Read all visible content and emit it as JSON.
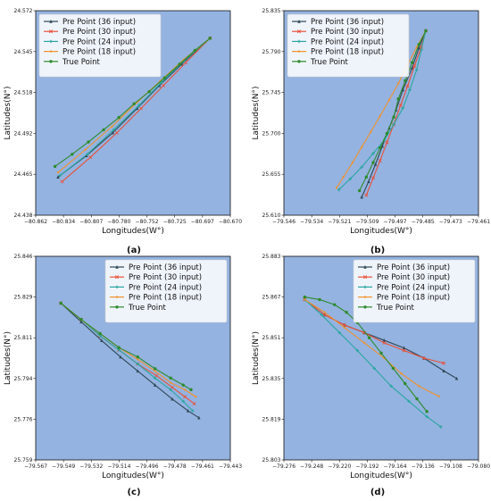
{
  "chart_data": [
    {
      "type": "line",
      "panel": "a",
      "caption": "(a)",
      "xlabel": "Longitudes(W°)",
      "ylabel": "Latitudes(N°)",
      "xlim": [
        -80.862,
        -80.67
      ],
      "ylim": [
        24.438,
        24.572
      ],
      "xticks": [
        "−80.862",
        "−80.834",
        "−80.807",
        "−80.780",
        "−80.752",
        "−80.725",
        "−80.697",
        "−80.670"
      ],
      "yticks": [
        "24.438",
        "24.465",
        "24.492",
        "24.518",
        "24.545",
        "24.572"
      ],
      "legend": "top-left",
      "series": [
        {
          "name": "Pre Point (36 input)",
          "color": "#2f4858",
          "marker": "triangle",
          "points": [
            [
              -80.84,
              24.463
            ],
            [
              -80.812,
              24.477
            ],
            [
              -80.786,
              24.492
            ],
            [
              -80.762,
              24.508
            ],
            [
              -80.74,
              24.523
            ],
            [
              -80.718,
              24.537
            ],
            [
              -80.69,
              24.554
            ]
          ]
        },
        {
          "name": "Pre Point (30 input)",
          "color": "#e8513a",
          "marker": "cross",
          "points": [
            [
              -80.836,
              24.46
            ],
            [
              -80.808,
              24.476
            ],
            [
              -80.782,
              24.492
            ],
            [
              -80.758,
              24.508
            ],
            [
              -80.736,
              24.523
            ],
            [
              -80.714,
              24.538
            ],
            [
              -80.69,
              24.554
            ]
          ]
        },
        {
          "name": "Pre Point (24 input)",
          "color": "#2ba6a0",
          "marker": "star",
          "points": [
            [
              -80.838,
              24.464
            ],
            [
              -80.811,
              24.478
            ],
            [
              -80.785,
              24.494
            ],
            [
              -80.76,
              24.51
            ],
            [
              -80.738,
              24.525
            ],
            [
              -80.716,
              24.539
            ],
            [
              -80.69,
              24.554
            ]
          ]
        },
        {
          "name": "Pre Point (18 input)",
          "color": "#f0922e",
          "marker": "circle",
          "points": [
            [
              -80.84,
              24.466
            ],
            [
              -80.813,
              24.481
            ],
            [
              -80.787,
              24.496
            ],
            [
              -80.762,
              24.512
            ],
            [
              -80.739,
              24.526
            ],
            [
              -80.716,
              24.54
            ],
            [
              -80.69,
              24.554
            ]
          ]
        },
        {
          "name": "True Point",
          "color": "#2e8b2e",
          "marker": "dot",
          "points": [
            [
              -80.843,
              24.47
            ],
            [
              -80.826,
              24.478
            ],
            [
              -80.81,
              24.486
            ],
            [
              -80.795,
              24.494
            ],
            [
              -80.78,
              24.502
            ],
            [
              -80.765,
              24.511
            ],
            [
              -80.75,
              24.519
            ],
            [
              -80.735,
              24.528
            ],
            [
              -80.72,
              24.537
            ],
            [
              -80.705,
              24.546
            ],
            [
              -80.69,
              24.554
            ]
          ]
        }
      ]
    },
    {
      "type": "line",
      "panel": "b",
      "caption": "(b)",
      "xlabel": "Longitudes(W°)",
      "ylabel": "Latitudes(N°)",
      "xlim": [
        -79.546,
        -79.461
      ],
      "ylim": [
        25.61,
        25.835
      ],
      "xticks": [
        "−79.546",
        "−79.534",
        "−79.521",
        "−79.509",
        "−79.497",
        "−79.485",
        "−79.473",
        "−79.461"
      ],
      "yticks": [
        "25.610",
        "25.655",
        "25.700",
        "25.745",
        "25.790",
        "25.835"
      ],
      "legend": "top-left",
      "series": [
        {
          "name": "Pre Point (36 input)",
          "color": "#2f4858",
          "marker": "triangle",
          "points": [
            [
              -79.512,
              25.63
            ],
            [
              -79.509,
              25.647
            ],
            [
              -79.506,
              25.666
            ],
            [
              -79.503,
              25.686
            ],
            [
              -79.5,
              25.706
            ],
            [
              -79.497,
              25.726
            ],
            [
              -79.494,
              25.748
            ],
            [
              -79.49,
              25.772
            ],
            [
              -79.487,
              25.794
            ],
            [
              -79.484,
              25.813
            ]
          ]
        },
        {
          "name": "Pre Point (30 input)",
          "color": "#e8513a",
          "marker": "cross",
          "points": [
            [
              -79.51,
              25.632
            ],
            [
              -79.507,
              25.651
            ],
            [
              -79.504,
              25.67
            ],
            [
              -79.501,
              25.69
            ],
            [
              -79.498,
              25.71
            ],
            [
              -79.495,
              25.731
            ],
            [
              -79.492,
              25.752
            ],
            [
              -79.489,
              25.774
            ],
            [
              -79.486,
              25.795
            ],
            [
              -79.484,
              25.813
            ]
          ]
        },
        {
          "name": "Pre Point (24 input)",
          "color": "#2ba6a0",
          "marker": "star",
          "points": [
            [
              -79.522,
              25.638
            ],
            [
              -79.517,
              25.65
            ],
            [
              -79.512,
              25.663
            ],
            [
              -79.507,
              25.678
            ],
            [
              -79.502,
              25.693
            ],
            [
              -79.498,
              25.71
            ],
            [
              -79.494,
              25.728
            ],
            [
              -79.491,
              25.748
            ],
            [
              -79.488,
              25.77
            ],
            [
              -79.486,
              25.792
            ],
            [
              -79.484,
              25.813
            ]
          ]
        },
        {
          "name": "Pre Point (18 input)",
          "color": "#f0922e",
          "marker": "circle",
          "points": [
            [
              -79.523,
              25.64
            ],
            [
              -79.52,
              25.652
            ],
            [
              -79.516,
              25.668
            ],
            [
              -79.512,
              25.685
            ],
            [
              -79.508,
              25.702
            ],
            [
              -79.504,
              25.719
            ],
            [
              -79.5,
              25.737
            ],
            [
              -79.496,
              25.755
            ],
            [
              -79.492,
              25.775
            ],
            [
              -79.488,
              25.795
            ],
            [
              -79.484,
              25.813
            ]
          ]
        },
        {
          "name": "True Point",
          "color": "#2e8b2e",
          "marker": "dot",
          "points": [
            [
              -79.513,
              25.637
            ],
            [
              -79.51,
              25.652
            ],
            [
              -79.507,
              25.668
            ],
            [
              -79.504,
              25.684
            ],
            [
              -79.501,
              25.7
            ],
            [
              -79.498,
              25.718
            ],
            [
              -79.496,
              25.738
            ],
            [
              -79.493,
              25.758
            ],
            [
              -79.49,
              25.778
            ],
            [
              -79.487,
              25.798
            ],
            [
              -79.484,
              25.813
            ]
          ]
        }
      ]
    },
    {
      "type": "line",
      "panel": "c",
      "caption": "(c)",
      "xlabel": "Longitudes(W°)",
      "ylabel": "Latitudes(N°)",
      "xlim": [
        -79.567,
        -79.443
      ],
      "ylim": [
        25.759,
        25.846
      ],
      "xticks": [
        "−79.567",
        "−79.549",
        "−79.532",
        "−79.514",
        "−79.496",
        "−79.478",
        "−79.461",
        "−79.443"
      ],
      "yticks": [
        "25.759",
        "25.776",
        "25.794",
        "25.811",
        "25.829",
        "25.846"
      ],
      "legend": "top-right",
      "series": [
        {
          "name": "Pre Point (36 input)",
          "color": "#2f4858",
          "marker": "triangle",
          "points": [
            [
              -79.551,
              25.826
            ],
            [
              -79.538,
              25.818
            ],
            [
              -79.525,
              25.81
            ],
            [
              -79.513,
              25.803
            ],
            [
              -79.502,
              25.797
            ],
            [
              -79.491,
              25.791
            ],
            [
              -79.48,
              25.785
            ],
            [
              -79.47,
              25.78
            ],
            [
              -79.463,
              25.777
            ]
          ]
        },
        {
          "name": "Pre Point (30 input)",
          "color": "#e8513a",
          "marker": "cross",
          "points": [
            [
              -79.551,
              25.826
            ],
            [
              -79.538,
              25.819
            ],
            [
              -79.526,
              25.812
            ],
            [
              -79.514,
              25.806
            ],
            [
              -79.502,
              25.8
            ],
            [
              -79.49,
              25.795
            ],
            [
              -79.48,
              25.79
            ],
            [
              -79.472,
              25.786
            ],
            [
              -79.466,
              25.783
            ]
          ]
        },
        {
          "name": "Pre Point (24 input)",
          "color": "#2ba6a0",
          "marker": "star",
          "points": [
            [
              -79.551,
              25.826
            ],
            [
              -79.538,
              25.819
            ],
            [
              -79.526,
              25.812
            ],
            [
              -79.514,
              25.806
            ],
            [
              -79.502,
              25.8
            ],
            [
              -79.491,
              25.794
            ],
            [
              -79.481,
              25.789
            ],
            [
              -79.473,
              25.784
            ],
            [
              -79.467,
              25.78
            ]
          ]
        },
        {
          "name": "Pre Point (18 input)",
          "color": "#f0922e",
          "marker": "circle",
          "points": [
            [
              -79.551,
              25.826
            ],
            [
              -79.538,
              25.819
            ],
            [
              -79.526,
              25.813
            ],
            [
              -79.514,
              25.807
            ],
            [
              -79.502,
              25.802
            ],
            [
              -79.491,
              25.797
            ],
            [
              -79.481,
              25.792
            ],
            [
              -79.472,
              25.789
            ],
            [
              -79.465,
              25.786
            ]
          ]
        },
        {
          "name": "True Point",
          "color": "#2e8b2e",
          "marker": "dot",
          "points": [
            [
              -79.551,
              25.826
            ],
            [
              -79.538,
              25.819
            ],
            [
              -79.526,
              25.813
            ],
            [
              -79.514,
              25.807
            ],
            [
              -79.502,
              25.803
            ],
            [
              -79.491,
              25.798
            ],
            [
              -79.481,
              25.794
            ],
            [
              -79.473,
              25.791
            ],
            [
              -79.468,
              25.789
            ]
          ]
        }
      ]
    },
    {
      "type": "line",
      "panel": "d",
      "caption": "(d)",
      "xlabel": "Longitudes(W°)",
      "ylabel": "Latitudes(N°)",
      "xlim": [
        -79.276,
        -79.08
      ],
      "ylim": [
        25.803,
        25.883
      ],
      "xticks": [
        "−79.276",
        "−79.248",
        "−79.220",
        "−79.192",
        "−79.164",
        "−79.136",
        "−79.108",
        "−79.080"
      ],
      "yticks": [
        "25.803",
        "25.819",
        "25.835",
        "25.851",
        "25.867",
        "25.883"
      ],
      "legend": "top-right",
      "series": [
        {
          "name": "Pre Point (36 input)",
          "color": "#2f4858",
          "marker": "triangle",
          "points": [
            [
              -79.255,
              25.866
            ],
            [
              -79.235,
              25.86
            ],
            [
              -79.215,
              25.856
            ],
            [
              -79.195,
              25.853
            ],
            [
              -79.175,
              25.85
            ],
            [
              -79.155,
              25.847
            ],
            [
              -79.135,
              25.843
            ],
            [
              -79.115,
              25.838
            ],
            [
              -79.102,
              25.835
            ]
          ]
        },
        {
          "name": "Pre Point (30 input)",
          "color": "#e8513a",
          "marker": "cross",
          "points": [
            [
              -79.255,
              25.866
            ],
            [
              -79.235,
              25.86
            ],
            [
              -79.215,
              25.856
            ],
            [
              -79.195,
              25.853
            ],
            [
              -79.175,
              25.849
            ],
            [
              -79.155,
              25.846
            ],
            [
              -79.135,
              25.843
            ],
            [
              -79.115,
              25.841
            ]
          ]
        },
        {
          "name": "Pre Point (24 input)",
          "color": "#2ba6a0",
          "marker": "star",
          "points": [
            [
              -79.255,
              25.866
            ],
            [
              -79.238,
              25.86
            ],
            [
              -79.22,
              25.853
            ],
            [
              -79.202,
              25.846
            ],
            [
              -79.185,
              25.839
            ],
            [
              -79.168,
              25.832
            ],
            [
              -79.15,
              25.826
            ],
            [
              -79.132,
              25.82
            ],
            [
              -79.118,
              25.816
            ]
          ]
        },
        {
          "name": "Pre Point (18 input)",
          "color": "#f0922e",
          "marker": "circle",
          "points": [
            [
              -79.255,
              25.866
            ],
            [
              -79.235,
              25.861
            ],
            [
              -79.215,
              25.855
            ],
            [
              -79.195,
              25.849
            ],
            [
              -79.175,
              25.843
            ],
            [
              -79.158,
              25.837
            ],
            [
              -79.14,
              25.832
            ],
            [
              -79.12,
              25.828
            ]
          ]
        },
        {
          "name": "True Point",
          "color": "#2e8b2e",
          "marker": "dot",
          "points": [
            [
              -79.255,
              25.867
            ],
            [
              -79.24,
              25.866
            ],
            [
              -79.225,
              25.864
            ],
            [
              -79.213,
              25.861
            ],
            [
              -79.202,
              25.857
            ],
            [
              -79.19,
              25.851
            ],
            [
              -79.178,
              25.845
            ],
            [
              -79.166,
              25.839
            ],
            [
              -79.154,
              25.833
            ],
            [
              -79.142,
              25.827
            ],
            [
              -79.132,
              25.822
            ]
          ]
        }
      ]
    }
  ]
}
